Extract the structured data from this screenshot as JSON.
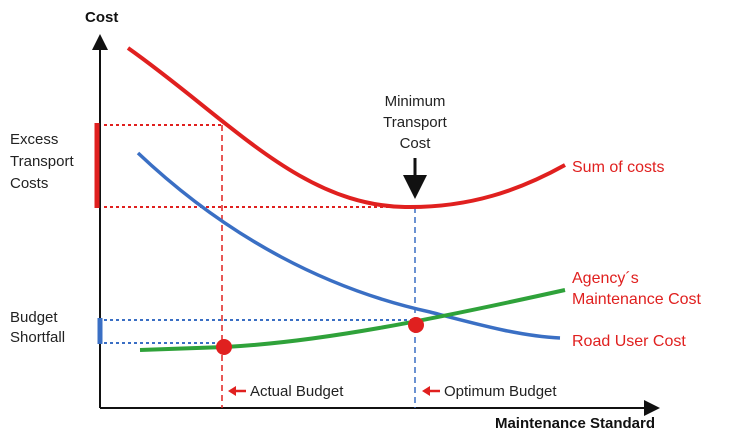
{
  "axes": {
    "y_label": "Cost",
    "x_label": "Maintenance Standard"
  },
  "labels": {
    "excess": [
      "Excess",
      "Transport",
      "Costs"
    ],
    "shortfall": [
      "Budget",
      "Shortfall"
    ],
    "minimum": [
      "Minimum",
      "Transport",
      "Cost"
    ],
    "sum": "Sum of costs",
    "agency": [
      "Agency´s",
      "Maintenance Cost"
    ],
    "road_user": "Road User Cost",
    "actual_budget": "Actual Budget",
    "optimum_budget": "Optimum Budget"
  }
}
